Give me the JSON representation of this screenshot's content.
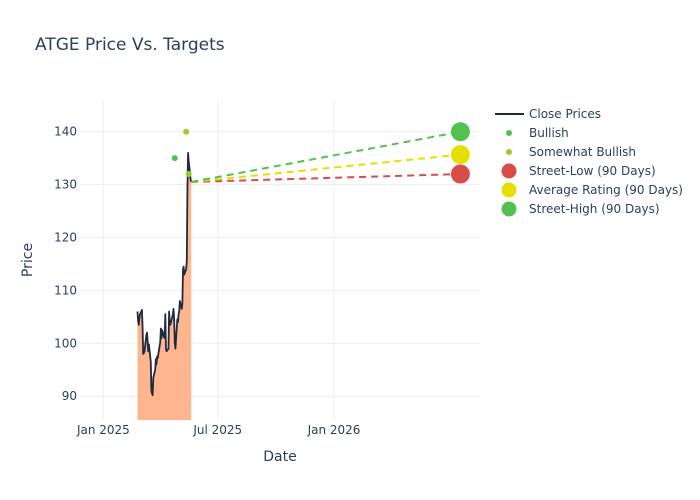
{
  "chart_data": {
    "type": "line",
    "title": "ATGE Price Vs. Targets",
    "xlabel": "Date",
    "ylabel": "Price",
    "xlim": [
      "2024-11-25",
      "2026-08-20"
    ],
    "ylim": [
      85.5,
      146
    ],
    "x_ticks": [
      {
        "date": "2025-01-01",
        "label": "Jan 2025"
      },
      {
        "date": "2025-07-01",
        "label": "Jul 2025"
      },
      {
        "date": "2026-01-01",
        "label": "Jan 2026"
      }
    ],
    "y_ticks": [
      90,
      100,
      110,
      120,
      130,
      140
    ],
    "grid": true,
    "legend_position": "right",
    "colors": {
      "close": "#1f2a3c",
      "fill": "#ffb58d",
      "bullish": "#52c152",
      "somewhat_bullish": "#9acd32",
      "low": "#d94c4c",
      "avg": "#e3e000",
      "high": "#52c152"
    },
    "close_prices": [
      [
        "2025-02-24",
        106.0
      ],
      [
        "2025-02-25",
        104.2
      ],
      [
        "2025-02-26",
        103.5
      ],
      [
        "2025-02-27",
        104.8
      ],
      [
        "2025-02-28",
        105.5
      ],
      [
        "2025-03-03",
        106.3
      ],
      [
        "2025-03-04",
        103.0
      ],
      [
        "2025-03-05",
        98.0
      ],
      [
        "2025-03-06",
        98.2
      ],
      [
        "2025-03-07",
        98.4
      ],
      [
        "2025-03-10",
        101.5
      ],
      [
        "2025-03-11",
        102.0
      ],
      [
        "2025-03-12",
        100.5
      ],
      [
        "2025-03-13",
        98.5
      ],
      [
        "2025-03-14",
        99.8
      ],
      [
        "2025-03-17",
        96.5
      ],
      [
        "2025-03-18",
        91.0
      ],
      [
        "2025-03-19",
        90.5
      ],
      [
        "2025-03-20",
        90.2
      ],
      [
        "2025-03-21",
        93.5
      ],
      [
        "2025-03-24",
        95.0
      ],
      [
        "2025-03-25",
        97.0
      ],
      [
        "2025-03-26",
        96.0
      ],
      [
        "2025-03-27",
        97.5
      ],
      [
        "2025-03-28",
        97.2
      ],
      [
        "2025-03-31",
        99.5
      ],
      [
        "2025-04-01",
        100.2
      ],
      [
        "2025-04-02",
        102.8
      ],
      [
        "2025-04-03",
        101.0
      ],
      [
        "2025-04-04",
        102.5
      ],
      [
        "2025-04-07",
        101.2
      ],
      [
        "2025-04-08",
        101.0
      ],
      [
        "2025-04-09",
        105.5
      ],
      [
        "2025-04-10",
        99.0
      ],
      [
        "2025-04-11",
        98.5
      ],
      [
        "2025-04-14",
        99.0
      ],
      [
        "2025-04-15",
        106.0
      ],
      [
        "2025-04-16",
        104.0
      ],
      [
        "2025-04-17",
        103.5
      ],
      [
        "2025-04-21",
        105.5
      ],
      [
        "2025-04-22",
        106.5
      ],
      [
        "2025-04-23",
        104.5
      ],
      [
        "2025-04-24",
        100.0
      ],
      [
        "2025-04-25",
        99.0
      ],
      [
        "2025-04-28",
        104.5
      ],
      [
        "2025-04-29",
        104.0
      ],
      [
        "2025-04-30",
        105.5
      ],
      [
        "2025-05-01",
        106.0
      ],
      [
        "2025-05-02",
        108.0
      ],
      [
        "2025-05-05",
        106.5
      ],
      [
        "2025-05-06",
        107.5
      ],
      [
        "2025-05-07",
        114.0
      ],
      [
        "2025-05-08",
        114.5
      ],
      [
        "2025-05-09",
        113.0
      ],
      [
        "2025-05-12",
        114.0
      ],
      [
        "2025-05-13",
        115.5
      ],
      [
        "2025-05-14",
        129.0
      ],
      [
        "2025-05-15",
        136.0
      ],
      [
        "2025-05-16",
        134.5
      ],
      [
        "2025-05-19",
        131.0
      ],
      [
        "2025-05-20",
        130.5
      ]
    ],
    "bullish": [
      [
        "2025-04-24",
        135
      ]
    ],
    "somewhat_bullish": [
      [
        "2025-05-12",
        140
      ],
      [
        "2025-05-16",
        132
      ]
    ],
    "projection_start": [
      "2025-05-20",
      130.5
    ],
    "projection_end": "2026-07-20",
    "targets": {
      "street_low": 132,
      "average": 135.67,
      "street_high": 140
    },
    "legend": [
      "Close Prices",
      "Bullish",
      "Somewhat Bullish",
      "Street-Low (90 Days)",
      "Average Rating (90 Days)",
      "Street-High (90 Days)"
    ]
  }
}
